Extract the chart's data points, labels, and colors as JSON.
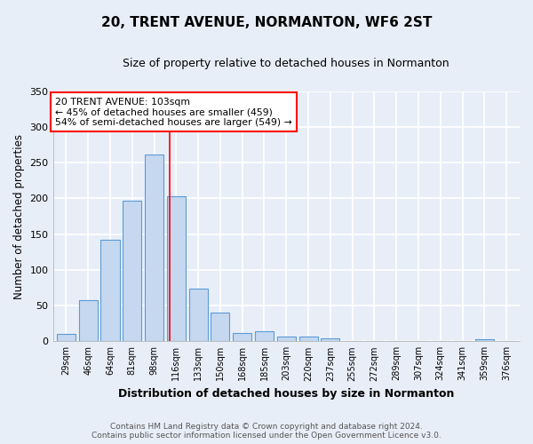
{
  "title": "20, TRENT AVENUE, NORMANTON, WF6 2ST",
  "subtitle": "Size of property relative to detached houses in Normanton",
  "xlabel": "Distribution of detached houses by size in Normanton",
  "ylabel": "Number of detached properties",
  "categories": [
    "29sqm",
    "46sqm",
    "64sqm",
    "81sqm",
    "98sqm",
    "116sqm",
    "133sqm",
    "150sqm",
    "168sqm",
    "185sqm",
    "203sqm",
    "220sqm",
    "237sqm",
    "255sqm",
    "272sqm",
    "289sqm",
    "307sqm",
    "324sqm",
    "341sqm",
    "359sqm",
    "376sqm"
  ],
  "values": [
    10,
    57,
    142,
    197,
    261,
    203,
    74,
    40,
    11,
    14,
    7,
    7,
    4,
    0,
    0,
    0,
    0,
    0,
    0,
    3,
    0
  ],
  "bar_color": "#c5d8f0",
  "bar_edge_color": "#5b9bd5",
  "background_color": "#e8eef8",
  "fig_background_color": "#e8eef8",
  "grid_color": "#ffffff",
  "ylim": [
    0,
    350
  ],
  "yticks": [
    0,
    50,
    100,
    150,
    200,
    250,
    300,
    350
  ],
  "red_line_x": 4.72,
  "annotation_text": "20 TRENT AVENUE: 103sqm\n← 45% of detached houses are smaller (459)\n54% of semi-detached houses are larger (549) →",
  "annotation_box_color": "white",
  "annotation_box_edge_color": "red",
  "footer_line1": "Contains HM Land Registry data © Crown copyright and database right 2024.",
  "footer_line2": "Contains public sector information licensed under the Open Government Licence v3.0."
}
